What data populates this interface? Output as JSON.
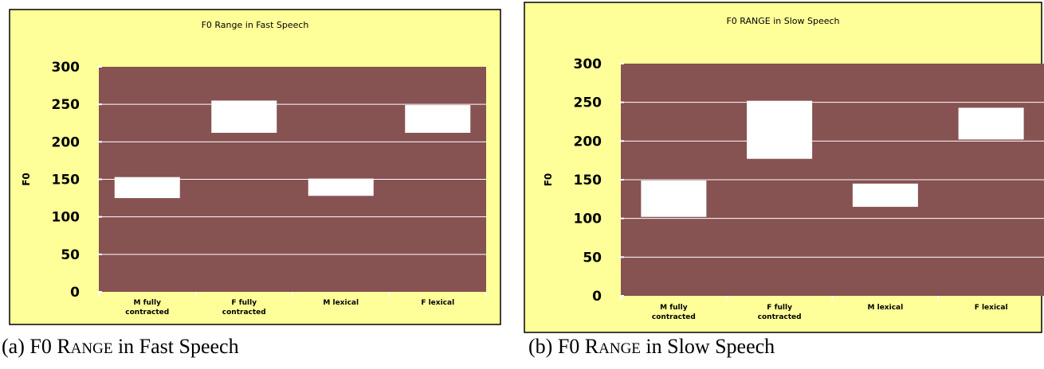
{
  "chart_data": [
    {
      "type": "bar",
      "title": "F0 Range in Fast Speech",
      "ylabel": "F0",
      "xlabel": "",
      "ylim": [
        0,
        300
      ],
      "yticks": [
        "0",
        "50",
        "100",
        "150",
        "200",
        "250",
        "300"
      ],
      "categories": [
        [
          "M fully",
          "contracted"
        ],
        [
          "F fully",
          "contracted"
        ],
        [
          "M lexical"
        ],
        [
          "F lexical"
        ]
      ],
      "ranges": [
        [
          125,
          153
        ],
        [
          212,
          255
        ],
        [
          128,
          151
        ],
        [
          212,
          249
        ]
      ],
      "grid": true,
      "colors": {
        "frame": "#FFFF99",
        "plot": "#875252",
        "bar": "#FFFFFF",
        "grid": "#FFFFFF"
      }
    },
    {
      "type": "bar",
      "title": "F0 RANGE in Slow Speech",
      "ylabel": "F0",
      "xlabel": "",
      "ylim": [
        0,
        300
      ],
      "yticks": [
        "0",
        "50",
        "100",
        "150",
        "200",
        "250",
        "300"
      ],
      "categories": [
        [
          "M fully",
          "contracted"
        ],
        [
          "F fully",
          "contracted"
        ],
        [
          "M lexical"
        ],
        [
          "F lexical"
        ]
      ],
      "ranges": [
        [
          102,
          149
        ],
        [
          177,
          252
        ],
        [
          115,
          145
        ],
        [
          202,
          243
        ]
      ],
      "grid": true,
      "colors": {
        "frame": "#FFFF99",
        "plot": "#875252",
        "bar": "#FFFFFF",
        "grid": "#FFFFFF"
      }
    }
  ],
  "captions": [
    {
      "label": "(a) F0 R",
      "label_sc": "ANGE",
      "label_end": " in Fast Speech"
    },
    {
      "label": "(b) F0 R",
      "label_sc": "ANGE",
      "label_end": " in Slow Speech"
    }
  ]
}
